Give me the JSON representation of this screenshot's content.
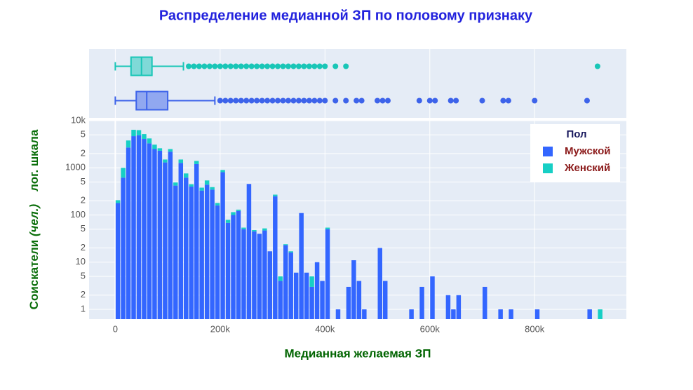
{
  "chart_data": [
    {
      "type": "histogram",
      "title": "Распределение медианной ЗП по половому признаку",
      "x_label": "Медианная желаемая ЗП",
      "y_label_main": "Соискатели",
      "y_label_unit": "(чел.)",
      "y_label_note": "лог. шкала",
      "legend_title": "Пол",
      "legend_position": "top-right",
      "log_y": true,
      "grid": true,
      "bins": [
        0,
        10000,
        20000,
        30000,
        40000,
        50000,
        60000,
        70000,
        80000,
        90000,
        100000,
        110000,
        120000,
        130000,
        140000,
        150000,
        160000,
        170000,
        180000,
        190000,
        200000,
        210000,
        220000,
        230000,
        240000,
        250000,
        260000,
        270000,
        280000,
        290000,
        300000,
        310000,
        320000,
        330000,
        340000,
        350000,
        360000,
        370000,
        380000,
        390000,
        400000,
        410000,
        420000,
        430000,
        440000,
        450000,
        460000,
        470000,
        480000,
        490000,
        500000,
        510000,
        520000,
        530000,
        540000,
        550000,
        560000,
        570000,
        580000,
        590000,
        600000,
        610000,
        620000,
        630000,
        640000,
        650000,
        660000,
        670000,
        680000,
        690000,
        700000,
        710000,
        720000,
        730000,
        740000,
        750000,
        760000,
        770000,
        780000,
        790000,
        800000,
        810000,
        820000,
        830000,
        840000,
        850000,
        860000,
        870000,
        880000,
        890000,
        900000,
        910000,
        920000,
        930000
      ],
      "series": [
        {
          "name": "Мужской",
          "color": "#3366FF",
          "values": [
            179,
            620,
            2700,
            4700,
            4900,
            4100,
            3300,
            2500,
            2300,
            1300,
            2200,
            420,
            1270,
            620,
            400,
            1200,
            330,
            440,
            345,
            160,
            810,
            68,
            100,
            122,
            50,
            455,
            45,
            40,
            47,
            17,
            250,
            4,
            23,
            16,
            6,
            110,
            6,
            3,
            10,
            4,
            50,
            0,
            1,
            0,
            3,
            11,
            4,
            1,
            0,
            0,
            20,
            4,
            0,
            0,
            0,
            0,
            1,
            0,
            3,
            0,
            5,
            0,
            0,
            2,
            1,
            2,
            0,
            0,
            0,
            0,
            3,
            0,
            0,
            1,
            0,
            1,
            0,
            0,
            0,
            0,
            1,
            0,
            0,
            0,
            0,
            0,
            0,
            0,
            0,
            0,
            1,
            0,
            0
          ]
        },
        {
          "name": "Женский",
          "color": "#17CFC5",
          "values": [
            27,
            380,
            1100,
            1700,
            1400,
            1100,
            900,
            600,
            300,
            200,
            300,
            70,
            230,
            140,
            50,
            200,
            50,
            100,
            45,
            20,
            90,
            11,
            15,
            8,
            4,
            0,
            3,
            0,
            5,
            0,
            20,
            1,
            1,
            1,
            0,
            0,
            0,
            2,
            0,
            0,
            4,
            0,
            0,
            0,
            0,
            0,
            0,
            0,
            0,
            0,
            0,
            0,
            0,
            0,
            0,
            0,
            0,
            0,
            0,
            0,
            0,
            0,
            0,
            0,
            0,
            0,
            0,
            0,
            0,
            0,
            0,
            0,
            0,
            0,
            0,
            0,
            0,
            0,
            0,
            0,
            0,
            0,
            0,
            0,
            0,
            0,
            0,
            0,
            0,
            0,
            0,
            0,
            1
          ]
        }
      ],
      "xlim": [
        -50000,
        975000
      ],
      "xticks": [
        0,
        {
          "value": 200000,
          "label": "200k"
        },
        {
          "value": 400000,
          "label": "400k"
        },
        {
          "value": 600000,
          "label": "600k"
        },
        {
          "value": 800000,
          "label": "800k"
        }
      ],
      "ylim": [
        0.62,
        10000
      ],
      "yticks": [
        1,
        2,
        5,
        10,
        {
          "value": 20,
          "label": "2"
        },
        {
          "value": 50,
          "label": "5"
        },
        100,
        {
          "value": 200,
          "label": "2"
        },
        {
          "value": 500,
          "label": "5"
        },
        1000,
        {
          "value": 2000,
          "label": "2"
        },
        {
          "value": 5000,
          "label": "5"
        },
        {
          "value": 10000,
          "label": "10k"
        }
      ]
    },
    {
      "type": "box",
      "boxes": [
        {
          "color": "#3D63EA",
          "min": 0,
          "q1": 40000,
          "median": 60000,
          "q3": 100000,
          "max": 190000,
          "outliers": [
            200000,
            210000,
            220000,
            230000,
            240000,
            250000,
            260000,
            270000,
            280000,
            290000,
            300000,
            310000,
            320000,
            330000,
            340000,
            350000,
            360000,
            370000,
            380000,
            390000,
            400000,
            420000,
            440000,
            460000,
            470000,
            500000,
            510000,
            520000,
            580000,
            600000,
            610000,
            640000,
            650000,
            700000,
            740000,
            750000,
            800000,
            900000
          ]
        },
        {
          "color": "#19C6B7",
          "min": 0,
          "q1": 30000,
          "median": 50000,
          "q3": 70000,
          "max": 130000,
          "outliers": [
            140000,
            150000,
            160000,
            170000,
            180000,
            190000,
            200000,
            210000,
            220000,
            230000,
            240000,
            250000,
            260000,
            270000,
            280000,
            290000,
            300000,
            310000,
            320000,
            330000,
            340000,
            350000,
            360000,
            370000,
            380000,
            390000,
            400000,
            420000,
            440000,
            920000
          ]
        }
      ]
    }
  ]
}
